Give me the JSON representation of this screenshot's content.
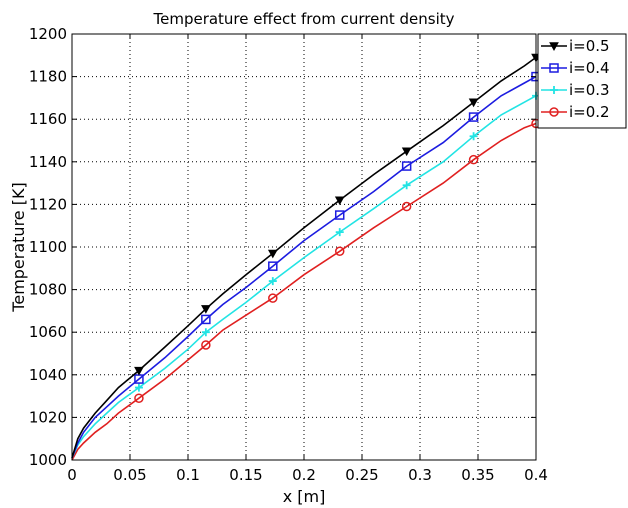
{
  "chart_data": {
    "type": "line",
    "title": "Temperature effect from current density",
    "xlabel": "x [m]",
    "ylabel": "Temperature [K]",
    "xlim": [
      0,
      0.4
    ],
    "ylim": [
      1000,
      1200
    ],
    "x_ticks": [
      0,
      0.05,
      0.1,
      0.15,
      0.2,
      0.25,
      0.3,
      0.35,
      0.4
    ],
    "x_tick_labels": [
      "0",
      "0.05",
      "0.1",
      "0.15",
      "0.2",
      "0.25",
      "0.3",
      "0.35",
      "0.4"
    ],
    "y_ticks": [
      1000,
      1020,
      1040,
      1060,
      1080,
      1100,
      1120,
      1140,
      1160,
      1180,
      1200
    ],
    "y_tick_labels": [
      "1000",
      "1020",
      "1040",
      "1060",
      "1080",
      "1100",
      "1120",
      "1140",
      "1160",
      "1180",
      "1200"
    ],
    "grid": true,
    "legend_position": "outside-top-right",
    "x": [
      0,
      0.005,
      0.01,
      0.02,
      0.03,
      0.04,
      0.0577,
      0.08,
      0.1,
      0.1154,
      0.13,
      0.15,
      0.1731,
      0.2,
      0.2308,
      0.26,
      0.2885,
      0.32,
      0.3462,
      0.37,
      0.39,
      0.4
    ],
    "series": [
      {
        "name": "i=0.5",
        "color": "#000000",
        "marker": "triangle-down",
        "values": [
          1001,
          1010,
          1015,
          1022,
          1028,
          1034,
          1042,
          1053,
          1063,
          1071,
          1078,
          1087,
          1097,
          1109,
          1122,
          1134,
          1145,
          1157,
          1168,
          1178,
          1185,
          1189
        ]
      },
      {
        "name": "i=0.4",
        "color": "#1c1ce0",
        "marker": "square",
        "values": [
          1001,
          1008,
          1013,
          1020,
          1025,
          1030,
          1038,
          1048,
          1058,
          1066,
          1073,
          1081,
          1091,
          1103,
          1115,
          1126,
          1138,
          1149,
          1161,
          1171,
          1177,
          1180
        ]
      },
      {
        "name": "i=0.3",
        "color": "#22e4e4",
        "marker": "plus",
        "values": [
          1001,
          1007,
          1011,
          1017,
          1022,
          1027,
          1034,
          1043,
          1052,
          1060,
          1066,
          1074,
          1084,
          1095,
          1107,
          1118,
          1129,
          1140,
          1152,
          1162,
          1168,
          1171
        ]
      },
      {
        "name": "i=0.2",
        "color": "#e02020",
        "marker": "circle",
        "values": [
          1000,
          1005,
          1008,
          1013,
          1017,
          1022,
          1029,
          1038,
          1047,
          1054,
          1061,
          1068,
          1076,
          1087,
          1098,
          1109,
          1119,
          1130,
          1141,
          1150,
          1156,
          1158
        ]
      }
    ],
    "marker_x": [
      0.0577,
      0.1154,
      0.1731,
      0.2308,
      0.2885,
      0.3462,
      0.4
    ]
  }
}
